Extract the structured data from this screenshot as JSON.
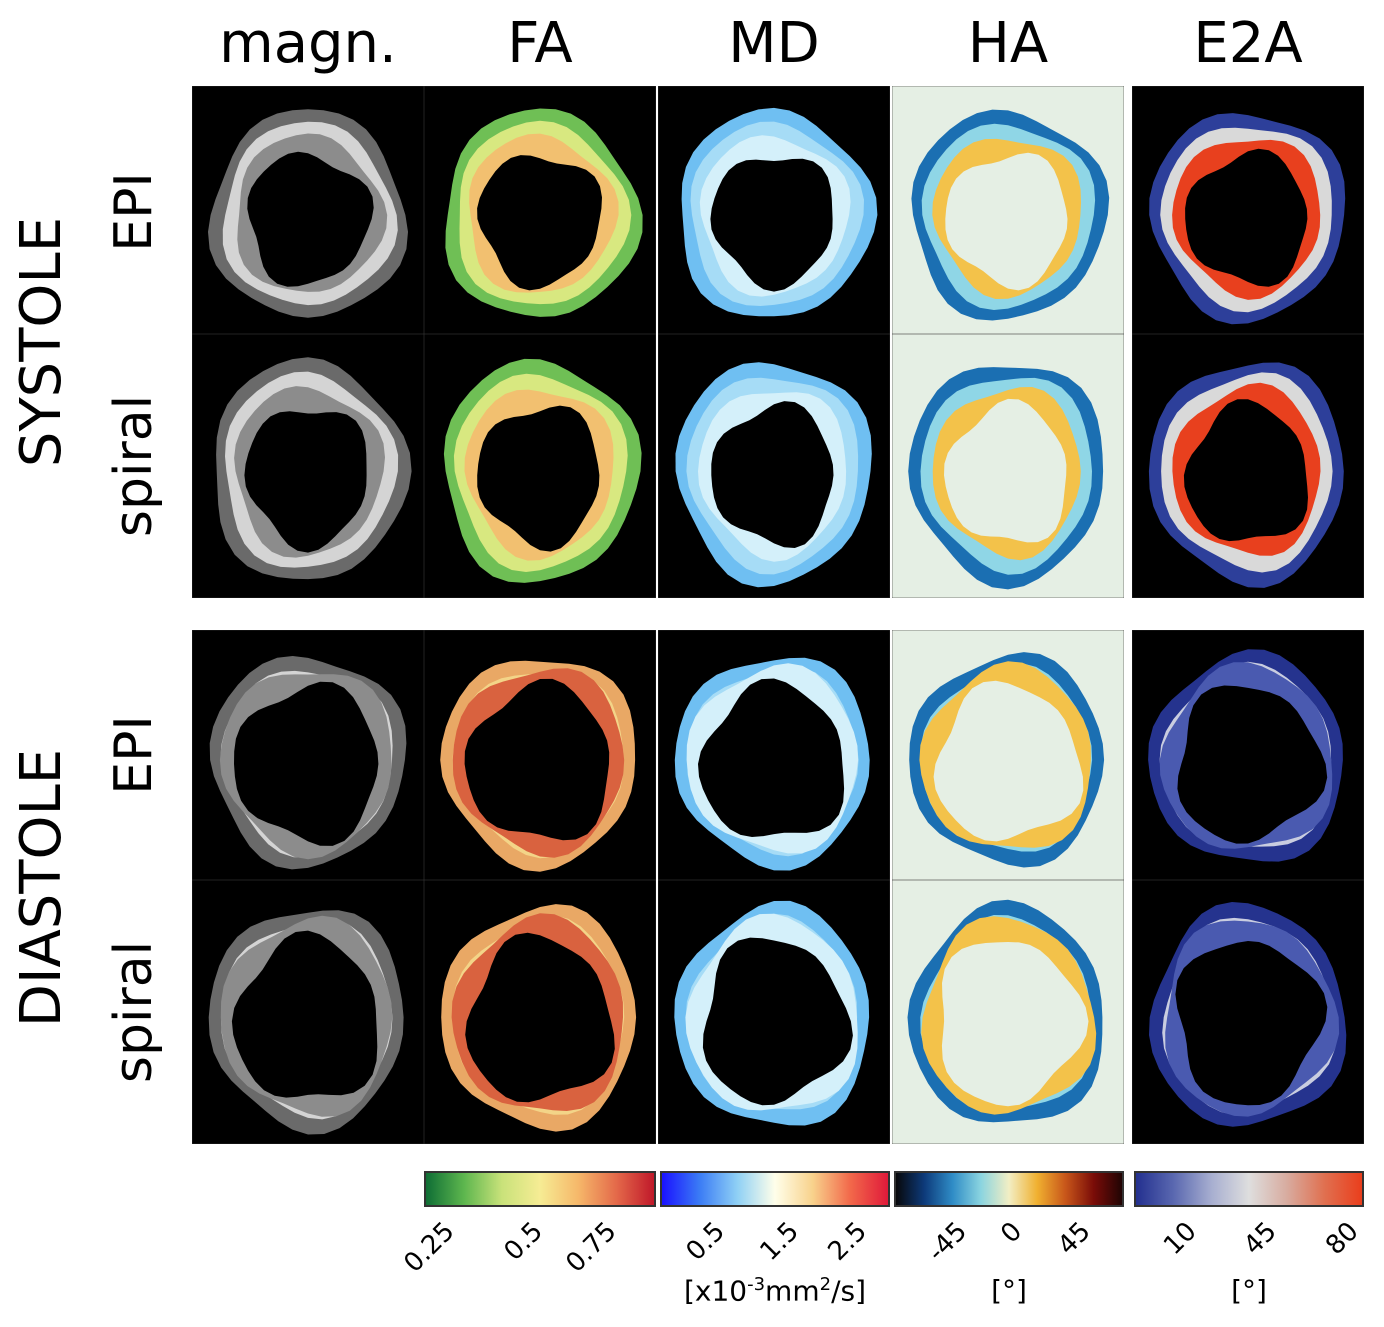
{
  "figure": {
    "columns": [
      "magn.",
      "FA",
      "MD",
      "HA",
      "E2A"
    ],
    "groups": [
      "SYSTOLE",
      "DIASTOLE"
    ],
    "rows": [
      "EPI",
      "spiral",
      "EPI",
      "spiral"
    ]
  },
  "colorbars": {
    "fa": {
      "ticks": [
        "0.25",
        "0.5",
        "0.75"
      ],
      "unit": ""
    },
    "md": {
      "ticks": [
        "0.5",
        "1.5",
        "2.5"
      ],
      "unit_prefix": "[x10",
      "unit_exp1": "-3",
      "unit_mid": "mm",
      "unit_exp2": "2",
      "unit_suffix": "/s]"
    },
    "ha": {
      "ticks": [
        "-45",
        "0",
        "45"
      ],
      "unit": "[°]"
    },
    "e2a": {
      "ticks": [
        "10",
        "45",
        "80"
      ],
      "unit": "[°]"
    }
  },
  "colors": {
    "magn": "#b8b8b8",
    "fa_low": "#1a7a3a",
    "fa_mid": "#f2e58a",
    "fa_high": "#c9232c",
    "md_low": "#1f2cff",
    "md_mid": "#ffffe8",
    "md_high": "#e01e2a",
    "ha_bg": "#e5efe4",
    "e2a_low": "#2d3f9a",
    "e2a_mid": "#dcdcdc",
    "e2a_high": "#e8401e"
  }
}
